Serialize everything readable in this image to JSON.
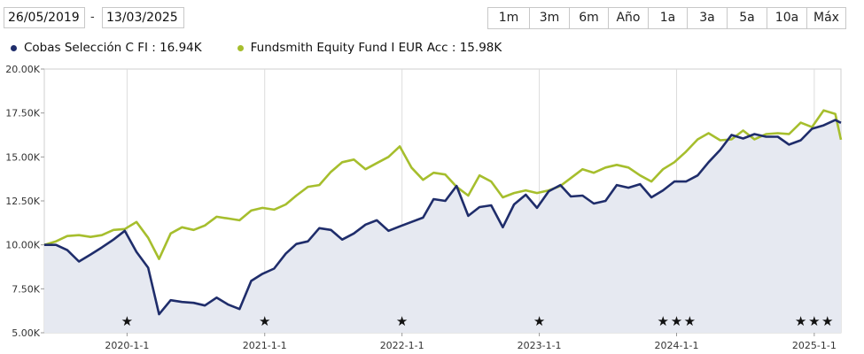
{
  "date_range": {
    "from": "26/05/2019",
    "to": "13/03/2025",
    "separator": "-"
  },
  "range_buttons": [
    "1m",
    "3m",
    "6m",
    "Año",
    "1a",
    "3a",
    "5a",
    "10a",
    "Máx"
  ],
  "colors": {
    "cobas": "#1f2d6b",
    "fundsmith": "#a6be2d",
    "fill": "#e6e9f1",
    "grid": "#dcdcdc"
  },
  "chart_data": {
    "type": "line",
    "x_range": [
      "2019-05-26",
      "2025-03-13"
    ],
    "ylim": [
      5000,
      20000
    ],
    "y_ticks": [
      5000,
      7500,
      10000,
      12500,
      15000,
      17500,
      20000
    ],
    "y_tick_labels": [
      "5.00K",
      "7.50K",
      "10.00K",
      "12.50K",
      "15.00K",
      "17.50K",
      "20.00K"
    ],
    "x_ticks": [
      "2020-01-01",
      "2021-01-01",
      "2022-01-01",
      "2023-01-01",
      "2024-01-01",
      "2025-01-01"
    ],
    "x_tick_labels": [
      "2020-1-1",
      "2021-1-1",
      "2022-1-1",
      "2023-1-1",
      "2024-1-1",
      "2025-1-1"
    ],
    "grid": "vertical",
    "legend_position": "top-left",
    "series": [
      {
        "name": "Cobas Selección C FI",
        "last_value_label": "16.94K",
        "x": [
          "2019-05-26",
          "2019-06-26",
          "2019-07-26",
          "2019-08-26",
          "2019-09-26",
          "2019-10-26",
          "2019-11-26",
          "2019-12-26",
          "2020-01-26",
          "2020-02-26",
          "2020-03-26",
          "2020-04-26",
          "2020-05-26",
          "2020-06-26",
          "2020-07-26",
          "2020-08-26",
          "2020-09-26",
          "2020-10-26",
          "2020-11-26",
          "2020-12-26",
          "2021-01-26",
          "2021-02-26",
          "2021-03-26",
          "2021-04-26",
          "2021-05-26",
          "2021-06-26",
          "2021-07-26",
          "2021-08-26",
          "2021-09-26",
          "2021-10-26",
          "2021-11-26",
          "2021-12-26",
          "2022-01-26",
          "2022-02-26",
          "2022-03-26",
          "2022-04-26",
          "2022-05-26",
          "2022-06-26",
          "2022-07-26",
          "2022-08-26",
          "2022-09-26",
          "2022-10-26",
          "2022-11-26",
          "2022-12-26",
          "2023-01-26",
          "2023-02-26",
          "2023-03-26",
          "2023-04-26",
          "2023-05-26",
          "2023-06-26",
          "2023-07-26",
          "2023-08-26",
          "2023-09-26",
          "2023-10-26",
          "2023-11-26",
          "2023-12-26",
          "2024-01-26",
          "2024-02-26",
          "2024-03-26",
          "2024-04-26",
          "2024-05-26",
          "2024-06-26",
          "2024-07-26",
          "2024-08-26",
          "2024-09-26",
          "2024-10-26",
          "2024-11-26",
          "2024-12-26",
          "2025-01-26",
          "2025-02-26",
          "2025-03-13"
        ],
        "values": [
          10000,
          10000,
          9700,
          9050,
          9450,
          9850,
          10300,
          10800,
          9600,
          8700,
          6050,
          6850,
          6750,
          6700,
          6550,
          7000,
          6600,
          6350,
          7950,
          8350,
          8650,
          9500,
          10050,
          10200,
          10950,
          10850,
          10300,
          10650,
          11150,
          11400,
          10800,
          11050,
          11300,
          11550,
          12600,
          12500,
          13350,
          11650,
          12150,
          12250,
          11000,
          12300,
          12850,
          12100,
          13050,
          13400,
          12750,
          12800,
          12350,
          12500,
          13400,
          13250,
          13450,
          12700,
          13100,
          13600,
          13600,
          13950,
          14700,
          15400,
          16250,
          16050,
          16300,
          16150,
          16150,
          15700,
          15950,
          16600,
          16800,
          17100,
          16940
        ]
      },
      {
        "name": "Fundsmith Equity Fund I EUR Acc",
        "last_value_label": "15.98K",
        "x": [
          "2019-05-26",
          "2019-06-26",
          "2019-07-26",
          "2019-08-26",
          "2019-09-26",
          "2019-10-26",
          "2019-11-26",
          "2019-12-26",
          "2020-01-26",
          "2020-02-26",
          "2020-03-26",
          "2020-04-26",
          "2020-05-26",
          "2020-06-26",
          "2020-07-26",
          "2020-08-26",
          "2020-09-26",
          "2020-10-26",
          "2020-11-26",
          "2020-12-26",
          "2021-01-26",
          "2021-02-26",
          "2021-03-26",
          "2021-04-26",
          "2021-05-26",
          "2021-06-26",
          "2021-07-26",
          "2021-08-26",
          "2021-09-26",
          "2021-10-26",
          "2021-11-26",
          "2021-12-26",
          "2022-01-26",
          "2022-02-26",
          "2022-03-26",
          "2022-04-26",
          "2022-05-26",
          "2022-06-26",
          "2022-07-26",
          "2022-08-26",
          "2022-09-26",
          "2022-10-26",
          "2022-11-26",
          "2022-12-26",
          "2023-01-26",
          "2023-02-26",
          "2023-03-26",
          "2023-04-26",
          "2023-05-26",
          "2023-06-26",
          "2023-07-26",
          "2023-08-26",
          "2023-09-26",
          "2023-10-26",
          "2023-11-26",
          "2023-12-26",
          "2024-01-26",
          "2024-02-26",
          "2024-03-26",
          "2024-04-26",
          "2024-05-26",
          "2024-06-26",
          "2024-07-26",
          "2024-08-26",
          "2024-09-26",
          "2024-10-26",
          "2024-11-26",
          "2024-12-26",
          "2025-01-26",
          "2025-02-26",
          "2025-03-13"
        ],
        "values": [
          10000,
          10200,
          10500,
          10550,
          10450,
          10550,
          10850,
          10900,
          11300,
          10400,
          9200,
          10650,
          11000,
          10850,
          11100,
          11600,
          11500,
          11400,
          11950,
          12100,
          12000,
          12300,
          12800,
          13300,
          13400,
          14150,
          14700,
          14850,
          14300,
          14650,
          15000,
          15600,
          14400,
          13700,
          14100,
          14000,
          13300,
          12800,
          13950,
          13600,
          12700,
          12950,
          13100,
          12950,
          13100,
          13350,
          13800,
          14300,
          14100,
          14400,
          14550,
          14400,
          13950,
          13600,
          14300,
          14700,
          15300,
          16000,
          16350,
          15950,
          16000,
          16500,
          16000,
          16300,
          16350,
          16300,
          16950,
          16700,
          17650,
          17450,
          15980
        ]
      }
    ],
    "star_markers": [
      "2020-01-01",
      "2021-01-01",
      "2022-01-01",
      "2023-01-01",
      "2023-11-26",
      "2024-01-01",
      "2024-02-05",
      "2024-11-26",
      "2025-01-01",
      "2025-02-05"
    ]
  }
}
